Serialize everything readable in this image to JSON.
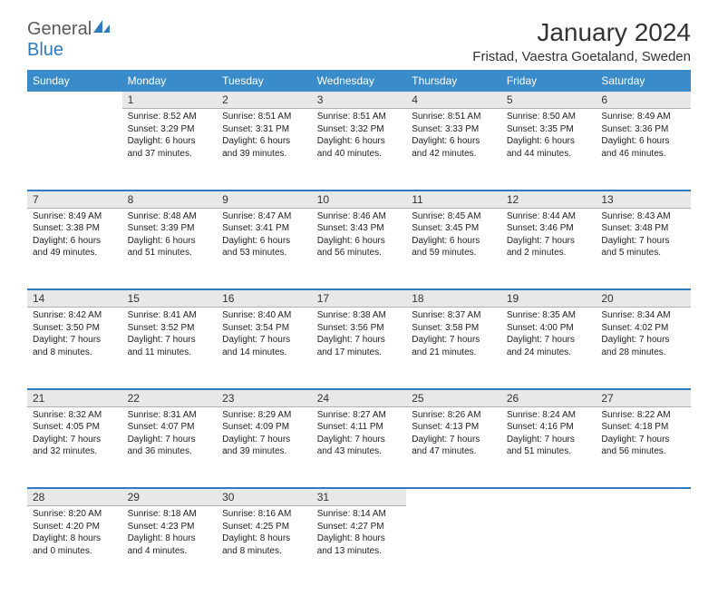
{
  "brand": {
    "part1": "General",
    "part2": "Blue"
  },
  "title": "January 2024",
  "location": "Fristad, Vaestra Goetaland, Sweden",
  "colors": {
    "header_bg": "#3a8bc9",
    "header_text": "#ffffff",
    "daynum_bg": "#e8e8e8",
    "row_border": "#2f7bbf",
    "brand_gray": "#5a5a5a",
    "brand_blue": "#2f7bbf"
  },
  "weekdays": [
    "Sunday",
    "Monday",
    "Tuesday",
    "Wednesday",
    "Thursday",
    "Friday",
    "Saturday"
  ],
  "weeks": [
    [
      null,
      {
        "n": "1",
        "sr": "8:52 AM",
        "ss": "3:29 PM",
        "dl": "6 hours and 37 minutes."
      },
      {
        "n": "2",
        "sr": "8:51 AM",
        "ss": "3:31 PM",
        "dl": "6 hours and 39 minutes."
      },
      {
        "n": "3",
        "sr": "8:51 AM",
        "ss": "3:32 PM",
        "dl": "6 hours and 40 minutes."
      },
      {
        "n": "4",
        "sr": "8:51 AM",
        "ss": "3:33 PM",
        "dl": "6 hours and 42 minutes."
      },
      {
        "n": "5",
        "sr": "8:50 AM",
        "ss": "3:35 PM",
        "dl": "6 hours and 44 minutes."
      },
      {
        "n": "6",
        "sr": "8:49 AM",
        "ss": "3:36 PM",
        "dl": "6 hours and 46 minutes."
      }
    ],
    [
      {
        "n": "7",
        "sr": "8:49 AM",
        "ss": "3:38 PM",
        "dl": "6 hours and 49 minutes."
      },
      {
        "n": "8",
        "sr": "8:48 AM",
        "ss": "3:39 PM",
        "dl": "6 hours and 51 minutes."
      },
      {
        "n": "9",
        "sr": "8:47 AM",
        "ss": "3:41 PM",
        "dl": "6 hours and 53 minutes."
      },
      {
        "n": "10",
        "sr": "8:46 AM",
        "ss": "3:43 PM",
        "dl": "6 hours and 56 minutes."
      },
      {
        "n": "11",
        "sr": "8:45 AM",
        "ss": "3:45 PM",
        "dl": "6 hours and 59 minutes."
      },
      {
        "n": "12",
        "sr": "8:44 AM",
        "ss": "3:46 PM",
        "dl": "7 hours and 2 minutes."
      },
      {
        "n": "13",
        "sr": "8:43 AM",
        "ss": "3:48 PM",
        "dl": "7 hours and 5 minutes."
      }
    ],
    [
      {
        "n": "14",
        "sr": "8:42 AM",
        "ss": "3:50 PM",
        "dl": "7 hours and 8 minutes."
      },
      {
        "n": "15",
        "sr": "8:41 AM",
        "ss": "3:52 PM",
        "dl": "7 hours and 11 minutes."
      },
      {
        "n": "16",
        "sr": "8:40 AM",
        "ss": "3:54 PM",
        "dl": "7 hours and 14 minutes."
      },
      {
        "n": "17",
        "sr": "8:38 AM",
        "ss": "3:56 PM",
        "dl": "7 hours and 17 minutes."
      },
      {
        "n": "18",
        "sr": "8:37 AM",
        "ss": "3:58 PM",
        "dl": "7 hours and 21 minutes."
      },
      {
        "n": "19",
        "sr": "8:35 AM",
        "ss": "4:00 PM",
        "dl": "7 hours and 24 minutes."
      },
      {
        "n": "20",
        "sr": "8:34 AM",
        "ss": "4:02 PM",
        "dl": "7 hours and 28 minutes."
      }
    ],
    [
      {
        "n": "21",
        "sr": "8:32 AM",
        "ss": "4:05 PM",
        "dl": "7 hours and 32 minutes."
      },
      {
        "n": "22",
        "sr": "8:31 AM",
        "ss": "4:07 PM",
        "dl": "7 hours and 36 minutes."
      },
      {
        "n": "23",
        "sr": "8:29 AM",
        "ss": "4:09 PM",
        "dl": "7 hours and 39 minutes."
      },
      {
        "n": "24",
        "sr": "8:27 AM",
        "ss": "4:11 PM",
        "dl": "7 hours and 43 minutes."
      },
      {
        "n": "25",
        "sr": "8:26 AM",
        "ss": "4:13 PM",
        "dl": "7 hours and 47 minutes."
      },
      {
        "n": "26",
        "sr": "8:24 AM",
        "ss": "4:16 PM",
        "dl": "7 hours and 51 minutes."
      },
      {
        "n": "27",
        "sr": "8:22 AM",
        "ss": "4:18 PM",
        "dl": "7 hours and 56 minutes."
      }
    ],
    [
      {
        "n": "28",
        "sr": "8:20 AM",
        "ss": "4:20 PM",
        "dl": "8 hours and 0 minutes."
      },
      {
        "n": "29",
        "sr": "8:18 AM",
        "ss": "4:23 PM",
        "dl": "8 hours and 4 minutes."
      },
      {
        "n": "30",
        "sr": "8:16 AM",
        "ss": "4:25 PM",
        "dl": "8 hours and 8 minutes."
      },
      {
        "n": "31",
        "sr": "8:14 AM",
        "ss": "4:27 PM",
        "dl": "8 hours and 13 minutes."
      },
      null,
      null,
      null
    ]
  ],
  "labels": {
    "sunrise": "Sunrise:",
    "sunset": "Sunset:",
    "daylight": "Daylight:"
  }
}
